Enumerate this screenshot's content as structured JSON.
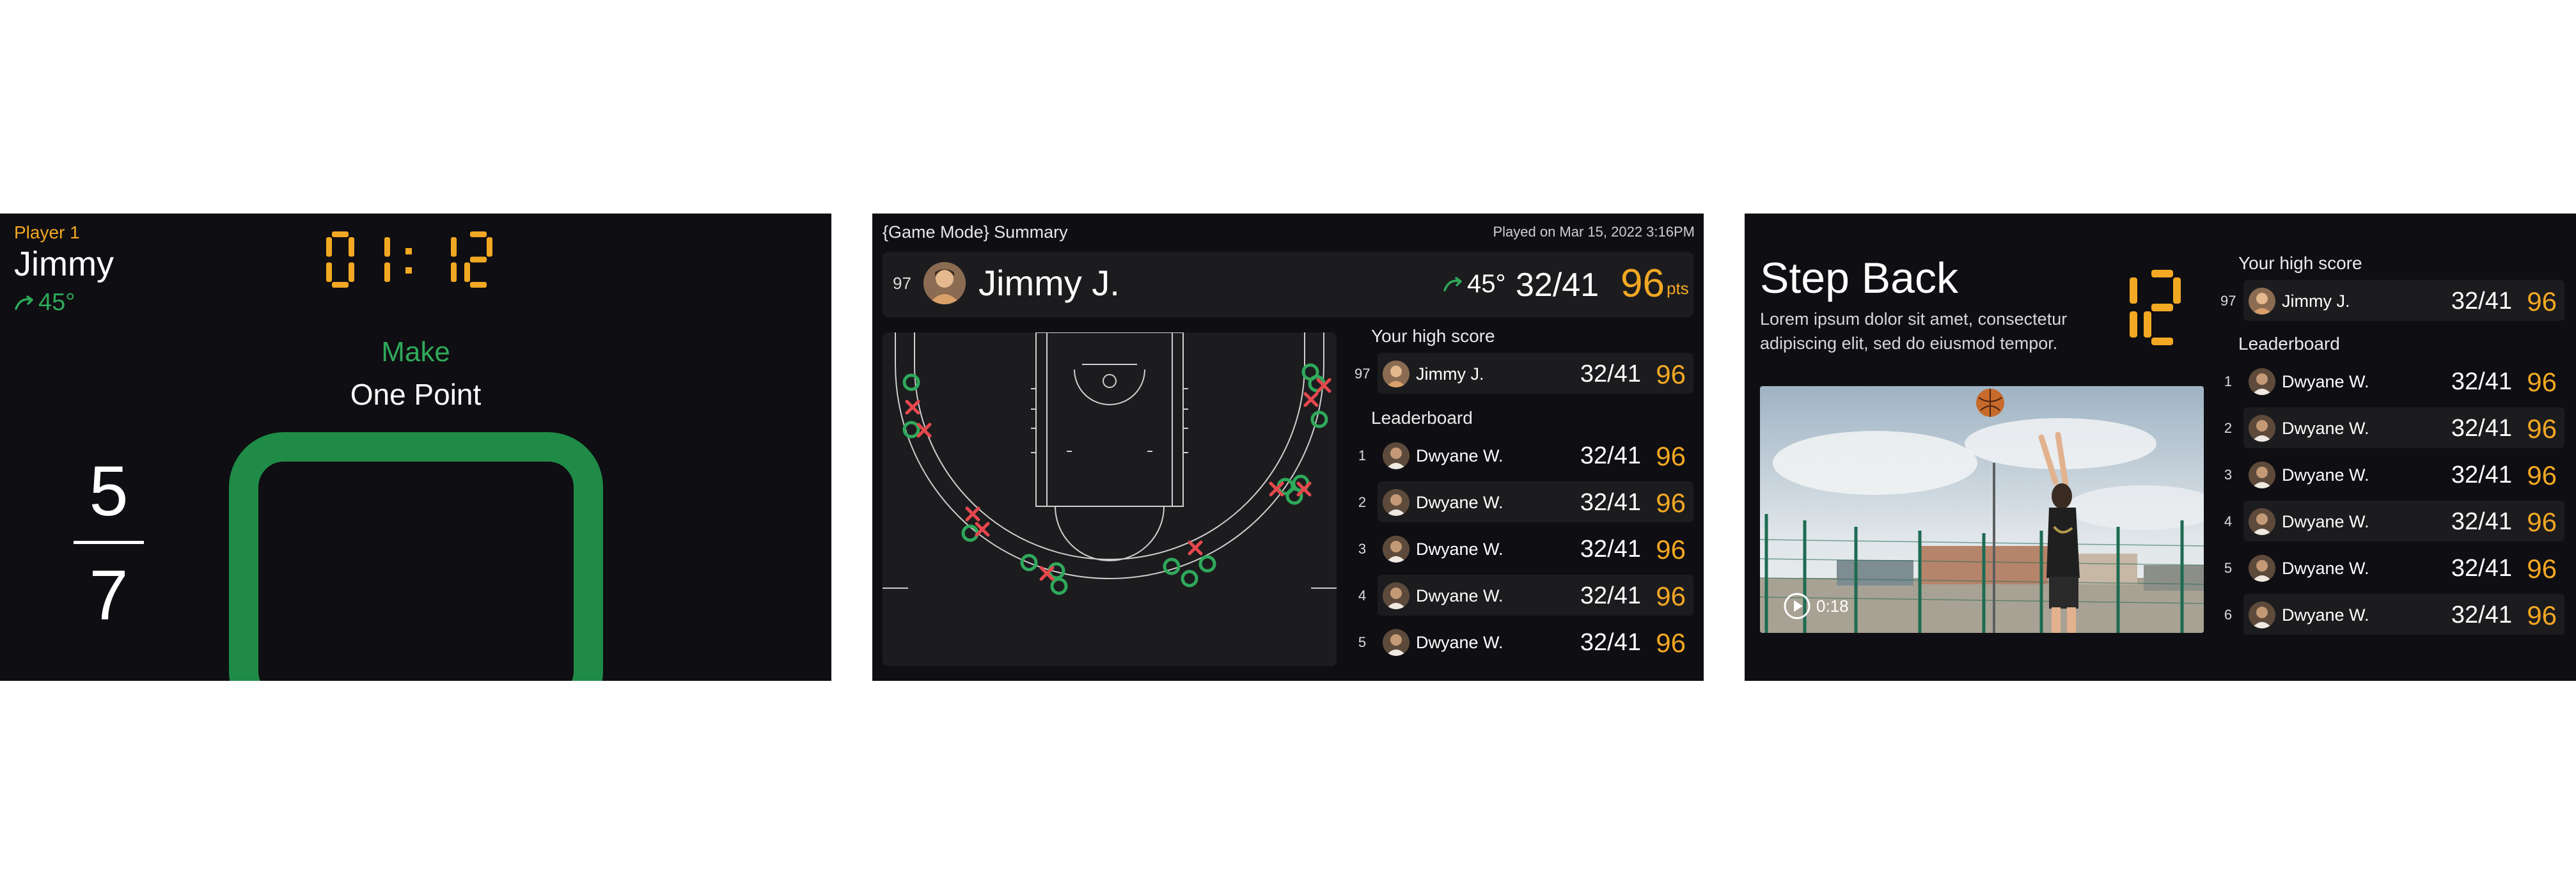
{
  "panel1": {
    "player_label": "Player 1",
    "player_name": "Jimmy",
    "angle": "45°",
    "timer_minutes": "01",
    "timer_seconds": "12",
    "instruction": "Make",
    "instruction_detail": "One Point",
    "made": "5",
    "attempts": "7"
  },
  "panel2": {
    "title": "{Game Mode} Summary",
    "played_on": "Played on Mar 15, 2022 3:16PM",
    "header": {
      "rank": "97",
      "name": "Jimmy J.",
      "angle": "45°",
      "score": "32/41",
      "points": "96",
      "points_unit": "pts"
    },
    "high_score_label": "Your high score",
    "high_score": {
      "rank": "97",
      "name": "Jimmy J.",
      "score": "32/41",
      "points": "96"
    },
    "leaderboard_label": "Leaderboard",
    "leaderboard": [
      {
        "rank": "1",
        "name": "Dwyane W.",
        "score": "32/41",
        "points": "96"
      },
      {
        "rank": "2",
        "name": "Dwyane W.",
        "score": "32/41",
        "points": "96"
      },
      {
        "rank": "3",
        "name": "Dwyane W.",
        "score": "32/41",
        "points": "96"
      },
      {
        "rank": "4",
        "name": "Dwyane W.",
        "score": "32/41",
        "points": "96"
      },
      {
        "rank": "5",
        "name": "Dwyane W.",
        "score": "32/41",
        "points": "96"
      }
    ]
  },
  "panel3": {
    "title": "Step Back",
    "description": "Lorem ipsum dolor sit amet, consectetur adipiscing elit, sed do eiusmod tempor.",
    "count": "12",
    "video_duration": "0:18",
    "high_score_label": "Your high score",
    "high_score": {
      "rank": "97",
      "name": "Jimmy J.",
      "score": "32/41",
      "points": "96"
    },
    "leaderboard_label": "Leaderboard",
    "leaderboard": [
      {
        "rank": "1",
        "name": "Dwyane W.",
        "score": "32/41",
        "points": "96"
      },
      {
        "rank": "2",
        "name": "Dwyane W.",
        "score": "32/41",
        "points": "96"
      },
      {
        "rank": "3",
        "name": "Dwyane W.",
        "score": "32/41",
        "points": "96"
      },
      {
        "rank": "4",
        "name": "Dwyane W.",
        "score": "32/41",
        "points": "96"
      },
      {
        "rank": "5",
        "name": "Dwyane W.",
        "score": "32/41",
        "points": "96"
      },
      {
        "rank": "6",
        "name": "Dwyane W.",
        "score": "32/41",
        "points": "96"
      }
    ]
  },
  "colors": {
    "accent": "#f3a823",
    "make": "#2fa95a",
    "miss": "#e5484d",
    "background": "#0f0e12",
    "surface": "#1c1c1f"
  },
  "icons": {
    "angle": "curved-arrow-icon",
    "play": "play-icon",
    "avatar": "avatar-icon"
  }
}
